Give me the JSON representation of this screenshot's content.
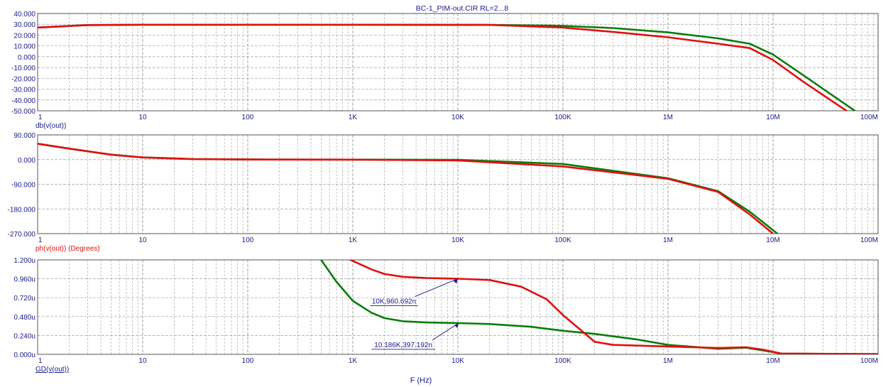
{
  "title": "BC-1_PIM-out.CIR RL=2...8",
  "xlabel": "F (Hz)",
  "colors": {
    "series_a": "#e01010",
    "series_b": "#0a7d0a",
    "grid": "#a0a0a0",
    "axis_text": "#1a1a8c",
    "background": "#ffffff"
  },
  "chart_data": [
    {
      "type": "line",
      "ylabel": "db(v(out))",
      "x_scale": "log",
      "xlim": [
        1,
        100000000
      ],
      "ylim": [
        -50,
        40
      ],
      "x_ticks": [
        1,
        10,
        100,
        1000,
        10000,
        100000,
        1000000,
        10000000,
        100000000
      ],
      "x_tick_labels": [
        "1",
        "10",
        "100",
        "1K",
        "10K",
        "100K",
        "1M",
        "10M",
        "100M"
      ],
      "y_ticks": [
        40,
        30,
        20,
        10,
        0,
        -10,
        -20,
        -30,
        -40,
        -50
      ],
      "y_tick_labels": [
        "40.000",
        "30.000",
        "20.000",
        "10.000",
        "0.000",
        "-10.000",
        "-20.000",
        "-30.000",
        "-40.000",
        "-50.000"
      ],
      "grid": true,
      "series": [
        {
          "color": "#e01010",
          "x": [
            1,
            3,
            10,
            1000,
            20000,
            100000,
            300000,
            1000000,
            3000000,
            6000000,
            10000000,
            20000000,
            50000000
          ],
          "values": [
            27,
            29.3,
            29.6,
            29.6,
            29.4,
            27,
            23,
            18,
            12,
            8,
            -3,
            -24,
            -50
          ]
        },
        {
          "color": "#0a7d0a",
          "x": [
            1,
            3,
            10,
            1000,
            20000,
            100000,
            300000,
            1000000,
            3000000,
            6000000,
            10000000,
            20000000,
            60000000
          ],
          "values": [
            27,
            29.3,
            29.6,
            29.6,
            29.5,
            28.6,
            26.5,
            22.5,
            17,
            12,
            2,
            -18,
            -50
          ]
        }
      ]
    },
    {
      "type": "line",
      "ylabel": "ph(v(out)) (Degrees)",
      "x_scale": "log",
      "xlim": [
        1,
        100000000
      ],
      "ylim": [
        -270,
        90
      ],
      "x_ticks": [
        1,
        10,
        100,
        1000,
        10000,
        100000,
        1000000,
        10000000,
        100000000
      ],
      "x_tick_labels": [
        "1",
        "10",
        "100",
        "1K",
        "10K",
        "100K",
        "1M",
        "10M",
        "100M"
      ],
      "y_ticks": [
        90,
        0,
        -90,
        -180,
        -270
      ],
      "y_tick_labels": [
        "90.000",
        "0.000",
        "-90.000",
        "-180.000",
        "-270.000"
      ],
      "grid": true,
      "series": [
        {
          "color": "#e01010",
          "x": [
            1,
            2,
            5,
            10,
            30,
            100,
            1000,
            10000,
            100000,
            1000000,
            3000000,
            6000000,
            10000000
          ],
          "values": [
            58,
            40,
            18,
            8,
            2,
            0.5,
            0,
            -3,
            -25,
            -70,
            -118,
            -200,
            -270
          ]
        },
        {
          "color": "#0a7d0a",
          "x": [
            1,
            2,
            5,
            10,
            30,
            100,
            1000,
            10000,
            100000,
            1000000,
            3000000,
            6000000,
            11000000
          ],
          "values": [
            58,
            40,
            18,
            8,
            2,
            0.5,
            0,
            -1,
            -16,
            -68,
            -115,
            -190,
            -270
          ]
        }
      ]
    },
    {
      "type": "line",
      "ylabel": "GD(v(out))",
      "x_scale": "log",
      "xlim": [
        1,
        100000000
      ],
      "ylim": [
        0,
        1.2
      ],
      "x_ticks": [
        1,
        10,
        100,
        1000,
        10000,
        100000,
        1000000,
        10000000,
        100000000
      ],
      "x_tick_labels": [
        "1",
        "10",
        "100",
        "1K",
        "10K",
        "100K",
        "1M",
        "10M",
        "100M"
      ],
      "y_ticks": [
        1.2,
        0.96,
        0.72,
        0.48,
        0.24,
        0
      ],
      "y_tick_labels": [
        "1.200u",
        "0.960u",
        "0.720u",
        "0.480u",
        "0.240u",
        "0.000u"
      ],
      "grid": true,
      "series": [
        {
          "color": "#e01010",
          "x": [
            950,
            1500,
            2000,
            3000,
            5000,
            10000,
            20000,
            40000,
            70000,
            100000,
            200000,
            300000,
            1000000,
            3000000,
            5500000,
            8000000,
            12000000,
            100000000
          ],
          "values": [
            1.2,
            1.08,
            1.02,
            0.985,
            0.97,
            0.961,
            0.945,
            0.86,
            0.7,
            0.5,
            0.16,
            0.12,
            0.1,
            0.08,
            0.09,
            0.06,
            0.01,
            0.003
          ]
        },
        {
          "color": "#0a7d0a",
          "x": [
            500,
            700,
            1000,
            1500,
            2000,
            3000,
            5000,
            10186,
            20000,
            50000,
            100000,
            200000,
            500000,
            1000000,
            3000000,
            5500000,
            8000000,
            12000000,
            100000000
          ],
          "values": [
            1.2,
            0.92,
            0.68,
            0.53,
            0.46,
            0.42,
            0.405,
            0.397,
            0.385,
            0.35,
            0.3,
            0.26,
            0.19,
            0.12,
            0.07,
            0.085,
            0.05,
            0.01,
            0.003
          ]
        }
      ],
      "annotations": [
        {
          "text": "10K,960.692n",
          "x": 10000,
          "y": 0.9607
        },
        {
          "text": "10.186K,397.192n",
          "x": 10186,
          "y": 0.3972
        }
      ]
    }
  ]
}
